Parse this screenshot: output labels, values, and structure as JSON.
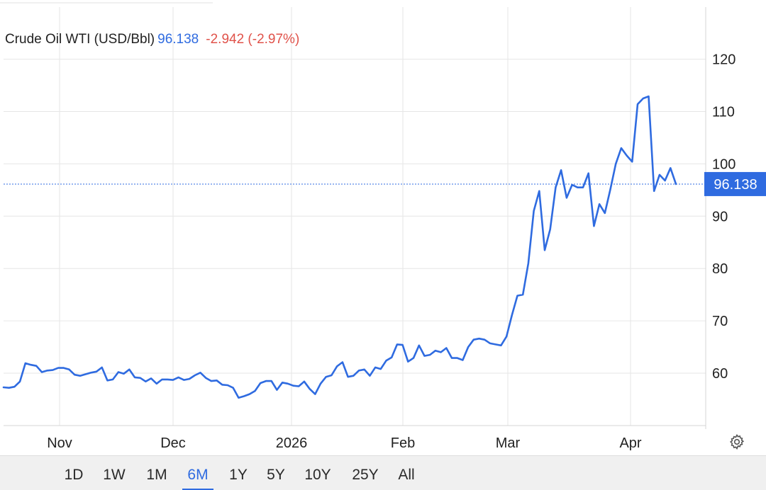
{
  "header": {
    "instrument": "Crude Oil WTI (USD/Bbl)",
    "price": "96.138",
    "change": "-2.942 (-2.97%)"
  },
  "colors": {
    "line": "#2f6be0",
    "positive_price": "#2f6be0",
    "negative_change": "#e0524a",
    "grid": "#e6e6e6",
    "price_tag_bg": "#2f6be0"
  },
  "icons": {
    "settings": "gear-icon"
  },
  "range_buttons": [
    {
      "label": "1D"
    },
    {
      "label": "1W"
    },
    {
      "label": "1M"
    },
    {
      "label": "6M",
      "active": true
    },
    {
      "label": "1Y"
    },
    {
      "label": "5Y"
    },
    {
      "label": "10Y"
    },
    {
      "label": "25Y"
    },
    {
      "label": "All"
    }
  ],
  "chart_data": {
    "type": "line",
    "title": "Crude Oil WTI (USD/Bbl)",
    "xlabel": "",
    "ylabel": "",
    "ylim": [
      46,
      130
    ],
    "grid": true,
    "y_axis_side": "right",
    "y_ticks": [
      60,
      70,
      80,
      90,
      100,
      110,
      120
    ],
    "x_ticks": [
      "Nov",
      "Dec",
      "2026",
      "Feb",
      "Mar",
      "Apr"
    ],
    "current_value_label": "96.138",
    "current_value": 96.138,
    "series": [
      {
        "values": [
          57.3,
          57.2,
          57.4,
          58.4,
          61.9,
          61.6,
          61.4,
          60.2,
          60.5,
          60.6,
          61.0,
          61.0,
          60.7,
          59.7,
          59.5,
          59.8,
          60.1,
          60.3,
          61.1,
          58.6,
          58.8,
          60.2,
          59.9,
          60.7,
          59.2,
          59.1,
          58.4,
          59.0,
          58.0,
          58.8,
          58.8,
          58.7,
          59.2,
          58.7,
          58.9,
          59.6,
          60.1,
          59.1,
          58.5,
          58.6,
          57.8,
          57.7,
          57.2,
          55.3,
          55.6,
          56.0,
          56.6,
          58.1,
          58.5,
          58.5,
          56.8,
          58.2,
          58.0,
          57.6,
          57.5,
          58.4,
          57.0,
          56.0,
          58.0,
          59.3,
          59.6,
          61.3,
          62.1,
          59.3,
          59.5,
          60.5,
          60.7,
          59.5,
          61.1,
          60.8,
          62.4,
          63.0,
          65.5,
          65.4,
          62.2,
          62.9,
          65.3,
          63.3,
          63.5,
          64.3,
          64.0,
          64.8,
          62.9,
          62.9,
          62.5,
          65.0,
          66.4,
          66.6,
          66.4,
          65.7,
          65.5,
          65.3,
          67.0,
          71.1,
          74.8,
          75.0,
          81.0,
          91.0,
          94.8,
          83.5,
          87.5,
          95.5,
          98.8,
          93.5,
          96.0,
          95.5,
          95.5,
          98.2,
          88.1,
          92.3,
          90.6,
          95.1,
          100.0,
          103.0,
          101.6,
          100.4,
          111.4,
          112.5,
          112.9,
          94.8,
          97.9,
          96.8,
          99.2,
          96.138
        ]
      }
    ]
  }
}
